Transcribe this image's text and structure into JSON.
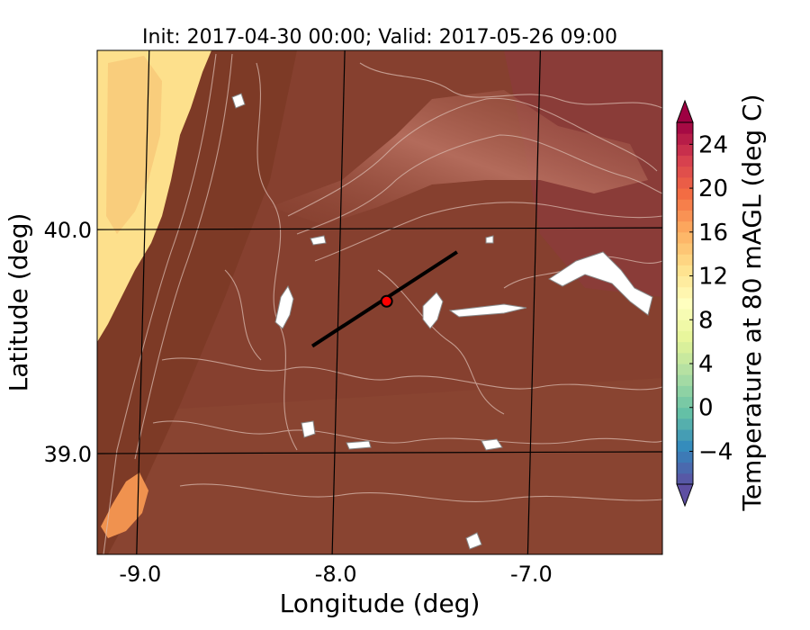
{
  "chart_data": {
    "type": "heatmap",
    "title": "Init: 2017-04-30 00:00; Valid: 2017-05-26 09:00",
    "xlabel": "Longitude (deg)",
    "ylabel": "Latitude (deg)",
    "xlim": [
      -9.22,
      -6.33
    ],
    "ylim": [
      38.55,
      40.8
    ],
    "xticks": [
      -9.0,
      -8.0,
      -7.0
    ],
    "xtick_labels": [
      "-9.0",
      "-8.0",
      "-7.0"
    ],
    "yticks": [
      39.0,
      40.0
    ],
    "ytick_labels": [
      "39.0",
      "40.0"
    ],
    "grid": true,
    "transect": {
      "start": [
        -8.12,
        39.48
      ],
      "end": [
        -7.38,
        39.9
      ]
    },
    "marker": {
      "lon": -7.74,
      "lat": 39.68,
      "color": "#ff0000"
    },
    "colorbar": {
      "label": "Temperature at 80 mAGL (deg C)",
      "min": -7,
      "max": 26,
      "extend": "both",
      "ticks": [
        -4,
        0,
        4,
        8,
        12,
        16,
        20,
        24
      ],
      "tick_labels": [
        "−4",
        "0",
        "4",
        "8",
        "12",
        "16",
        "20",
        "24"
      ]
    },
    "field_colors": {
      "coast": "#fde08c",
      "coast_dark": "#f8c878",
      "land_west": "#7c3a26",
      "land_main": "#86402f",
      "land_east": "#8a3c38",
      "land_south": "#8a4532",
      "ridge": "#a45a48",
      "warm_spot": "#f0924f",
      "snow": "#ffffff"
    }
  }
}
